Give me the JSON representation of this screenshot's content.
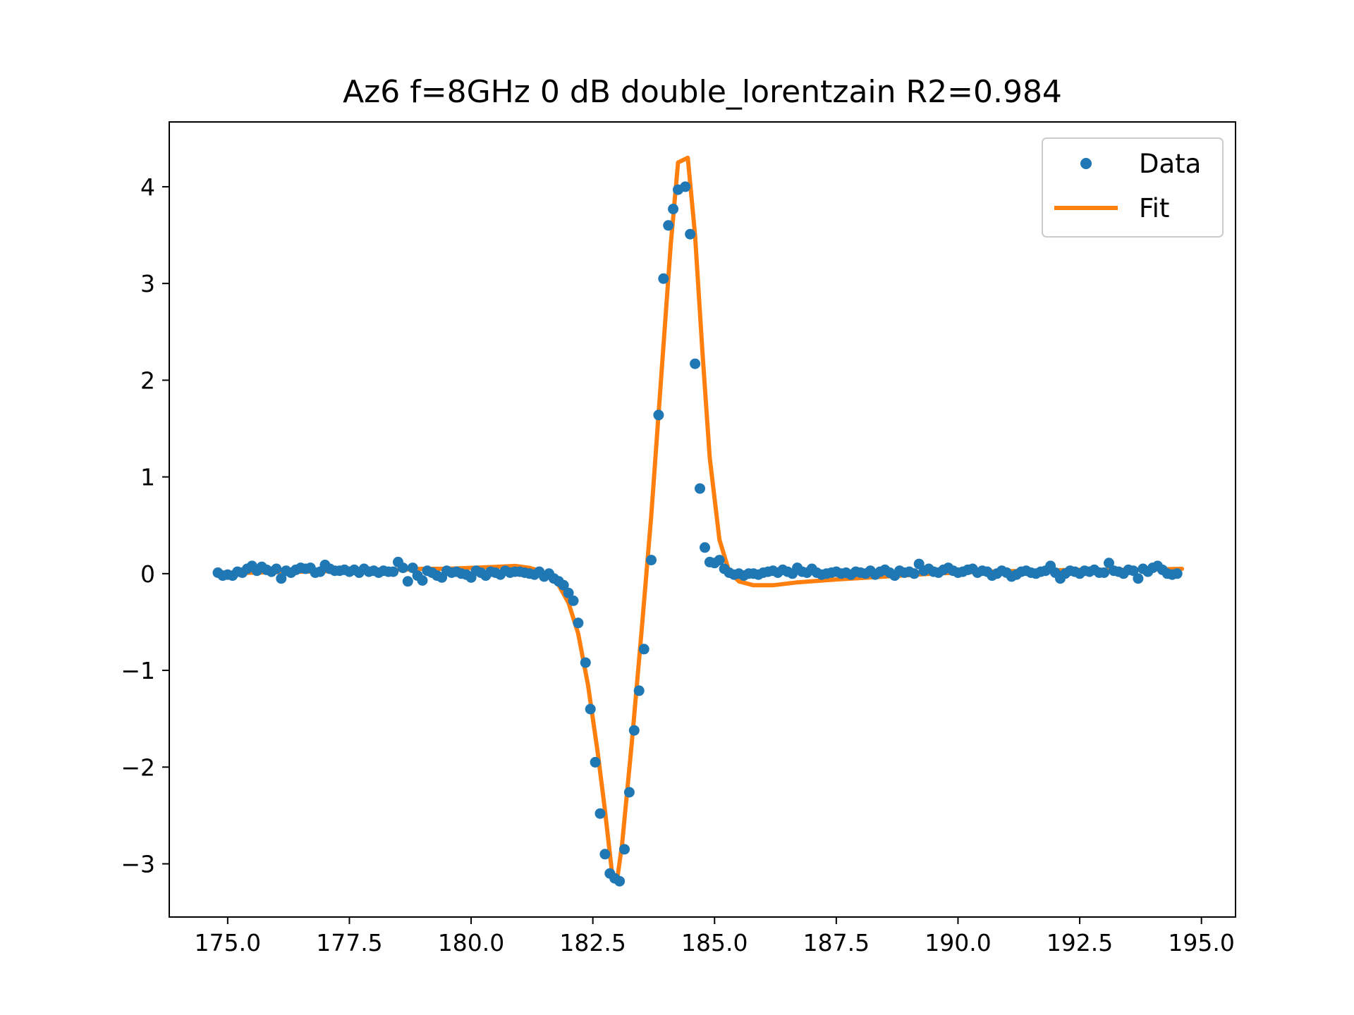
{
  "chart_data": {
    "type": "line+scatter",
    "title": "Az6 f=8GHz 0 dB double_lorentzain R2=0.984",
    "xlabel": "",
    "ylabel": "",
    "xlim": [
      173.8,
      195.7
    ],
    "ylim": [
      -3.55,
      4.67
    ],
    "xticks": [
      175.0,
      177.5,
      180.0,
      182.5,
      185.0,
      187.5,
      190.0,
      192.5,
      195.0
    ],
    "xtick_labels": [
      "175.0",
      "177.5",
      "180.0",
      "182.5",
      "185.0",
      "187.5",
      "190.0",
      "192.5",
      "195.0"
    ],
    "yticks": [
      -3,
      -2,
      -1,
      0,
      1,
      2,
      3,
      4
    ],
    "ytick_labels": [
      "−3",
      "−2",
      "−1",
      "0",
      "1",
      "2",
      "3",
      "4"
    ],
    "legend": {
      "position": "top-right",
      "entries": [
        {
          "label": "Data",
          "marker": "dot",
          "color": "#1f77b4"
        },
        {
          "label": "Fit",
          "marker": "line",
          "color": "#ff7f0e"
        }
      ]
    },
    "series": [
      {
        "name": "Data",
        "style": "scatter",
        "color": "#1f77b4",
        "points": [
          [
            174.8,
            0.01
          ],
          [
            174.9,
            -0.02
          ],
          [
            175.0,
            -0.01
          ],
          [
            175.1,
            -0.02
          ],
          [
            175.2,
            0.02
          ],
          [
            175.3,
            0.01
          ],
          [
            175.4,
            0.05
          ],
          [
            175.5,
            0.08
          ],
          [
            175.6,
            0.03
          ],
          [
            175.7,
            0.07
          ],
          [
            175.8,
            0.04
          ],
          [
            175.9,
            0.02
          ],
          [
            176.0,
            0.05
          ],
          [
            176.1,
            -0.05
          ],
          [
            176.2,
            0.03
          ],
          [
            176.3,
            0.01
          ],
          [
            176.4,
            0.04
          ],
          [
            176.5,
            0.06
          ],
          [
            176.6,
            0.05
          ],
          [
            176.7,
            0.06
          ],
          [
            176.8,
            0.01
          ],
          [
            176.9,
            0.02
          ],
          [
            177.0,
            0.09
          ],
          [
            177.1,
            0.05
          ],
          [
            177.2,
            0.03
          ],
          [
            177.3,
            0.03
          ],
          [
            177.4,
            0.04
          ],
          [
            177.5,
            0.02
          ],
          [
            177.6,
            0.04
          ],
          [
            177.7,
            0.01
          ],
          [
            177.8,
            0.05
          ],
          [
            177.9,
            0.02
          ],
          [
            178.0,
            0.03
          ],
          [
            178.1,
            0.01
          ],
          [
            178.2,
            0.03
          ],
          [
            178.3,
            0.02
          ],
          [
            178.4,
            0.02
          ],
          [
            178.5,
            0.12
          ],
          [
            178.6,
            0.06
          ],
          [
            178.7,
            -0.08
          ],
          [
            178.8,
            0.06
          ],
          [
            178.9,
            -0.02
          ],
          [
            179.0,
            -0.07
          ],
          [
            179.1,
            0.03
          ],
          [
            179.2,
            0.01
          ],
          [
            179.3,
            -0.02
          ],
          [
            179.4,
            -0.04
          ],
          [
            179.5,
            0.03
          ],
          [
            179.6,
            0.01
          ],
          [
            179.7,
            0.02
          ],
          [
            179.8,
            0.0
          ],
          [
            179.9,
            -0.01
          ],
          [
            180.0,
            -0.04
          ],
          [
            180.1,
            0.03
          ],
          [
            180.2,
            0.01
          ],
          [
            180.3,
            -0.02
          ],
          [
            180.4,
            0.02
          ],
          [
            180.5,
            0.01
          ],
          [
            180.6,
            -0.01
          ],
          [
            180.7,
            0.03
          ],
          [
            180.8,
            0.01
          ],
          [
            180.9,
            0.02
          ],
          [
            181.0,
            0.02
          ],
          [
            181.1,
            0.01
          ],
          [
            181.2,
            0.0
          ],
          [
            181.3,
            -0.01
          ],
          [
            181.4,
            0.02
          ],
          [
            181.5,
            -0.03
          ],
          [
            181.6,
            0.0
          ],
          [
            181.7,
            -0.05
          ],
          [
            181.8,
            -0.08
          ],
          [
            181.9,
            -0.12
          ],
          [
            182.0,
            -0.2
          ],
          [
            182.1,
            -0.28
          ],
          [
            182.2,
            -0.51
          ],
          [
            182.35,
            -0.92
          ],
          [
            182.45,
            -1.4
          ],
          [
            182.55,
            -1.95
          ],
          [
            182.65,
            -2.48
          ],
          [
            182.75,
            -2.9
          ],
          [
            182.85,
            -3.1
          ],
          [
            182.95,
            -3.15
          ],
          [
            183.05,
            -3.18
          ],
          [
            183.15,
            -2.85
          ],
          [
            183.25,
            -2.26
          ],
          [
            183.35,
            -1.62
          ],
          [
            183.45,
            -1.21
          ],
          [
            183.55,
            -0.78
          ],
          [
            183.7,
            0.14
          ],
          [
            183.85,
            1.64
          ],
          [
            183.95,
            3.05
          ],
          [
            184.05,
            3.6
          ],
          [
            184.15,
            3.77
          ],
          [
            184.25,
            3.97
          ],
          [
            184.4,
            4.0
          ],
          [
            184.5,
            3.51
          ],
          [
            184.6,
            2.17
          ],
          [
            184.7,
            0.88
          ],
          [
            184.8,
            0.27
          ],
          [
            184.9,
            0.12
          ],
          [
            185.0,
            0.11
          ],
          [
            185.1,
            0.14
          ],
          [
            185.2,
            0.05
          ],
          [
            185.3,
            0.01
          ],
          [
            185.4,
            -0.01
          ],
          [
            185.5,
            0.0
          ],
          [
            185.6,
            -0.02
          ],
          [
            185.7,
            0.0
          ],
          [
            185.8,
            0.0
          ],
          [
            185.9,
            -0.01
          ],
          [
            186.0,
            0.01
          ],
          [
            186.1,
            0.02
          ],
          [
            186.2,
            0.03
          ],
          [
            186.3,
            0.01
          ],
          [
            186.4,
            0.04
          ],
          [
            186.5,
            0.02
          ],
          [
            186.6,
            0.0
          ],
          [
            186.7,
            0.06
          ],
          [
            186.8,
            0.02
          ],
          [
            186.9,
            0.01
          ],
          [
            187.0,
            0.05
          ],
          [
            187.1,
            0.01
          ],
          [
            187.2,
            -0.01
          ],
          [
            187.3,
            0.0
          ],
          [
            187.4,
            0.01
          ],
          [
            187.5,
            0.02
          ],
          [
            187.6,
            0.0
          ],
          [
            187.7,
            0.01
          ],
          [
            187.8,
            -0.01
          ],
          [
            187.9,
            0.02
          ],
          [
            188.0,
            0.01
          ],
          [
            188.1,
            0.0
          ],
          [
            188.2,
            0.03
          ],
          [
            188.3,
            -0.01
          ],
          [
            188.4,
            0.02
          ],
          [
            188.5,
            0.04
          ],
          [
            188.6,
            0.01
          ],
          [
            188.7,
            -0.02
          ],
          [
            188.8,
            0.03
          ],
          [
            188.9,
            0.01
          ],
          [
            189.0,
            0.02
          ],
          [
            189.1,
            0.0
          ],
          [
            189.2,
            0.1
          ],
          [
            189.3,
            0.03
          ],
          [
            189.4,
            0.05
          ],
          [
            189.5,
            0.02
          ],
          [
            189.6,
            0.01
          ],
          [
            189.7,
            0.04
          ],
          [
            189.8,
            0.06
          ],
          [
            189.9,
            0.03
          ],
          [
            190.0,
            0.01
          ],
          [
            190.1,
            0.02
          ],
          [
            190.2,
            0.04
          ],
          [
            190.3,
            0.05
          ],
          [
            190.4,
            0.01
          ],
          [
            190.5,
            0.03
          ],
          [
            190.6,
            0.02
          ],
          [
            190.7,
            -0.02
          ],
          [
            190.8,
            0.0
          ],
          [
            190.9,
            0.03
          ],
          [
            191.0,
            0.01
          ],
          [
            191.1,
            -0.03
          ],
          [
            191.2,
            -0.01
          ],
          [
            191.3,
            0.02
          ],
          [
            191.4,
            0.03
          ],
          [
            191.5,
            0.01
          ],
          [
            191.6,
            0.0
          ],
          [
            191.7,
            0.02
          ],
          [
            191.8,
            0.03
          ],
          [
            191.9,
            0.08
          ],
          [
            192.0,
            0.01
          ],
          [
            192.1,
            -0.05
          ],
          [
            192.2,
            0.0
          ],
          [
            192.3,
            0.03
          ],
          [
            192.4,
            0.02
          ],
          [
            192.5,
            0.0
          ],
          [
            192.6,
            0.03
          ],
          [
            192.7,
            0.02
          ],
          [
            192.8,
            0.04
          ],
          [
            192.9,
            0.01
          ],
          [
            193.0,
            0.01
          ],
          [
            193.1,
            0.11
          ],
          [
            193.2,
            0.03
          ],
          [
            193.3,
            0.02
          ],
          [
            193.4,
            0.0
          ],
          [
            193.5,
            0.04
          ],
          [
            193.6,
            0.03
          ],
          [
            193.7,
            -0.05
          ],
          [
            193.8,
            0.05
          ],
          [
            193.9,
            0.02
          ],
          [
            194.0,
            0.06
          ],
          [
            194.1,
            0.08
          ],
          [
            194.2,
            0.04
          ],
          [
            194.3,
            0.0
          ],
          [
            194.4,
            -0.01
          ],
          [
            194.5,
            0.0
          ]
        ]
      },
      {
        "name": "Fit",
        "style": "line",
        "color": "#ff7f0e",
        "points": [
          [
            174.8,
            0.0
          ],
          [
            175.5,
            0.01
          ],
          [
            176.5,
            0.02
          ],
          [
            177.5,
            0.03
          ],
          [
            178.5,
            0.04
          ],
          [
            179.0,
            0.05
          ],
          [
            179.5,
            0.05
          ],
          [
            180.0,
            0.06
          ],
          [
            180.5,
            0.07
          ],
          [
            180.9,
            0.08
          ],
          [
            181.2,
            0.06
          ],
          [
            181.4,
            0.03
          ],
          [
            181.6,
            -0.02
          ],
          [
            181.8,
            -0.12
          ],
          [
            182.0,
            -0.3
          ],
          [
            182.2,
            -0.62
          ],
          [
            182.4,
            -1.15
          ],
          [
            182.6,
            -1.85
          ],
          [
            182.75,
            -2.45
          ],
          [
            182.9,
            -3.12
          ],
          [
            183.0,
            -3.16
          ],
          [
            183.1,
            -2.8
          ],
          [
            183.3,
            -1.75
          ],
          [
            183.5,
            -0.6
          ],
          [
            183.7,
            0.6
          ],
          [
            183.9,
            2.0
          ],
          [
            184.1,
            3.4
          ],
          [
            184.25,
            4.25
          ],
          [
            184.45,
            4.3
          ],
          [
            184.6,
            3.5
          ],
          [
            184.75,
            2.3
          ],
          [
            184.9,
            1.2
          ],
          [
            185.1,
            0.35
          ],
          [
            185.3,
            0.02
          ],
          [
            185.5,
            -0.08
          ],
          [
            185.8,
            -0.12
          ],
          [
            186.2,
            -0.12
          ],
          [
            186.7,
            -0.09
          ],
          [
            187.5,
            -0.06
          ],
          [
            188.5,
            -0.03
          ],
          [
            189.5,
            0.0
          ],
          [
            190.5,
            0.02
          ],
          [
            191.5,
            0.03
          ],
          [
            192.5,
            0.04
          ],
          [
            193.5,
            0.04
          ],
          [
            194.6,
            0.05
          ]
        ]
      }
    ]
  }
}
